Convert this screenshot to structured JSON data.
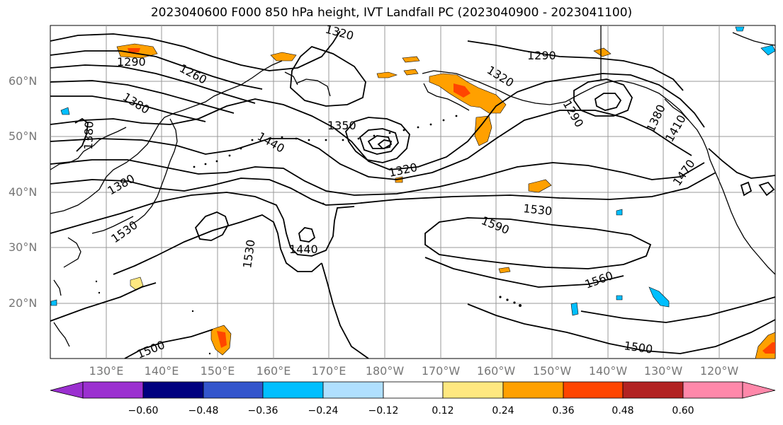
{
  "title": "2023040600 F000 850 hPa height, IVT Landfall PC (2023040900 - 2023041100)",
  "latitude_labels": [
    "60°N",
    "50°N",
    "40°N",
    "30°N",
    "20°N"
  ],
  "longitude_labels": [
    "130°E",
    "140°E",
    "150°E",
    "160°E",
    "170°E",
    "180°W",
    "170°W",
    "160°W",
    "150°W",
    "140°W",
    "130°W",
    "120°W"
  ],
  "contour_labels": [
    "1290",
    "1260",
    "1320",
    "1290",
    "1320",
    "1380",
    "1380",
    "1350",
    "1440",
    "1290",
    "1380",
    "1410",
    "1470",
    "1320",
    "1380",
    "1530",
    "1590",
    "1530",
    "1440",
    "1530",
    "1560",
    "1500",
    "1500"
  ],
  "colorbar": {
    "tick_labels": [
      "−0.60",
      "−0.48",
      "−0.36",
      "−0.24",
      "−0.12",
      "0.12",
      "0.24",
      "0.36",
      "0.48",
      "0.60"
    ],
    "colors": [
      "#9b30d0",
      "#00007f",
      "#3355cc",
      "#00bfff",
      "#b0e0ff",
      "#ffffff",
      "#ffe880",
      "#ffa000",
      "#ff4500",
      "#b22222",
      "#ff88aa"
    ]
  }
}
